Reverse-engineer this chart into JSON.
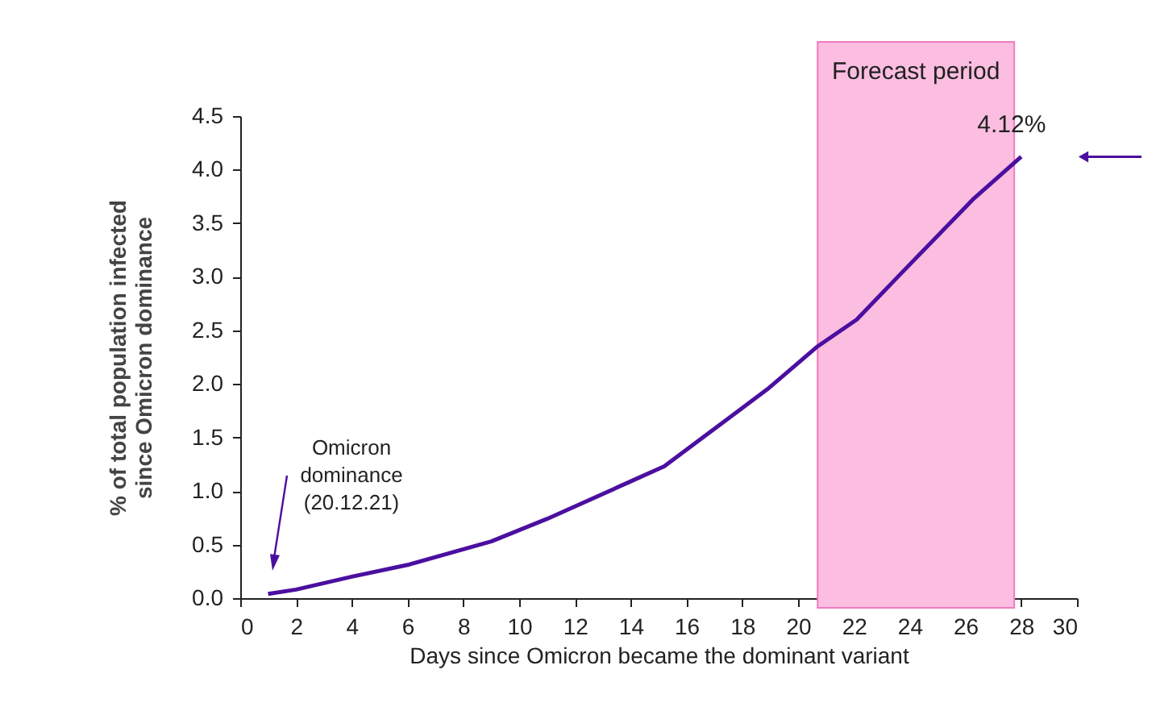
{
  "chart_data": {
    "type": "line",
    "xlabel": "Days since Omicron became the dominant variant",
    "ylabel": "% of total population infected since Omicron dominance",
    "x": [
      1,
      2,
      4,
      6,
      9,
      11,
      14,
      15.2,
      18.9,
      20.7,
      22.1,
      23.8,
      26.3,
      28
    ],
    "series": [
      {
        "color": "#4b0fa0",
        "values": [
          0.04,
          0.08,
          0.2,
          0.31,
          0.53,
          0.74,
          1.09,
          1.23,
          1.95,
          2.35,
          2.6,
          3.06,
          3.73,
          4.12
        ],
        "value_labels": [
          null,
          null,
          null,
          null,
          null,
          null,
          null,
          null,
          null,
          null,
          null,
          null,
          null,
          "4.12%"
        ]
      }
    ],
    "xlim": [
      0,
      30
    ],
    "xticks": [
      0,
      2,
      4,
      6,
      8,
      10,
      12,
      14,
      16,
      18,
      20,
      22,
      24,
      26,
      28,
      30
    ],
    "ylim": [
      0,
      4.5
    ],
    "yticks": [
      {
        "value": 0,
        "label": "0.0"
      },
      0.5,
      {
        "value": 1,
        "label": "1.0"
      },
      1.5,
      {
        "value": 2,
        "label": "2.0"
      },
      2.5,
      {
        "value": 3,
        "label": "3.0"
      },
      3.5,
      {
        "value": 4,
        "label": "4.0"
      },
      4.5
    ],
    "bands": [
      {
        "axis": "x",
        "from": 20.7,
        "to": 27.75,
        "label": "Forecast period",
        "color": "#fbbde0"
      }
    ],
    "annotations": [
      "Omicron dominance (20.12.21)"
    ],
    "grid": false,
    "marker": "none",
    "line_style": "solid"
  }
}
